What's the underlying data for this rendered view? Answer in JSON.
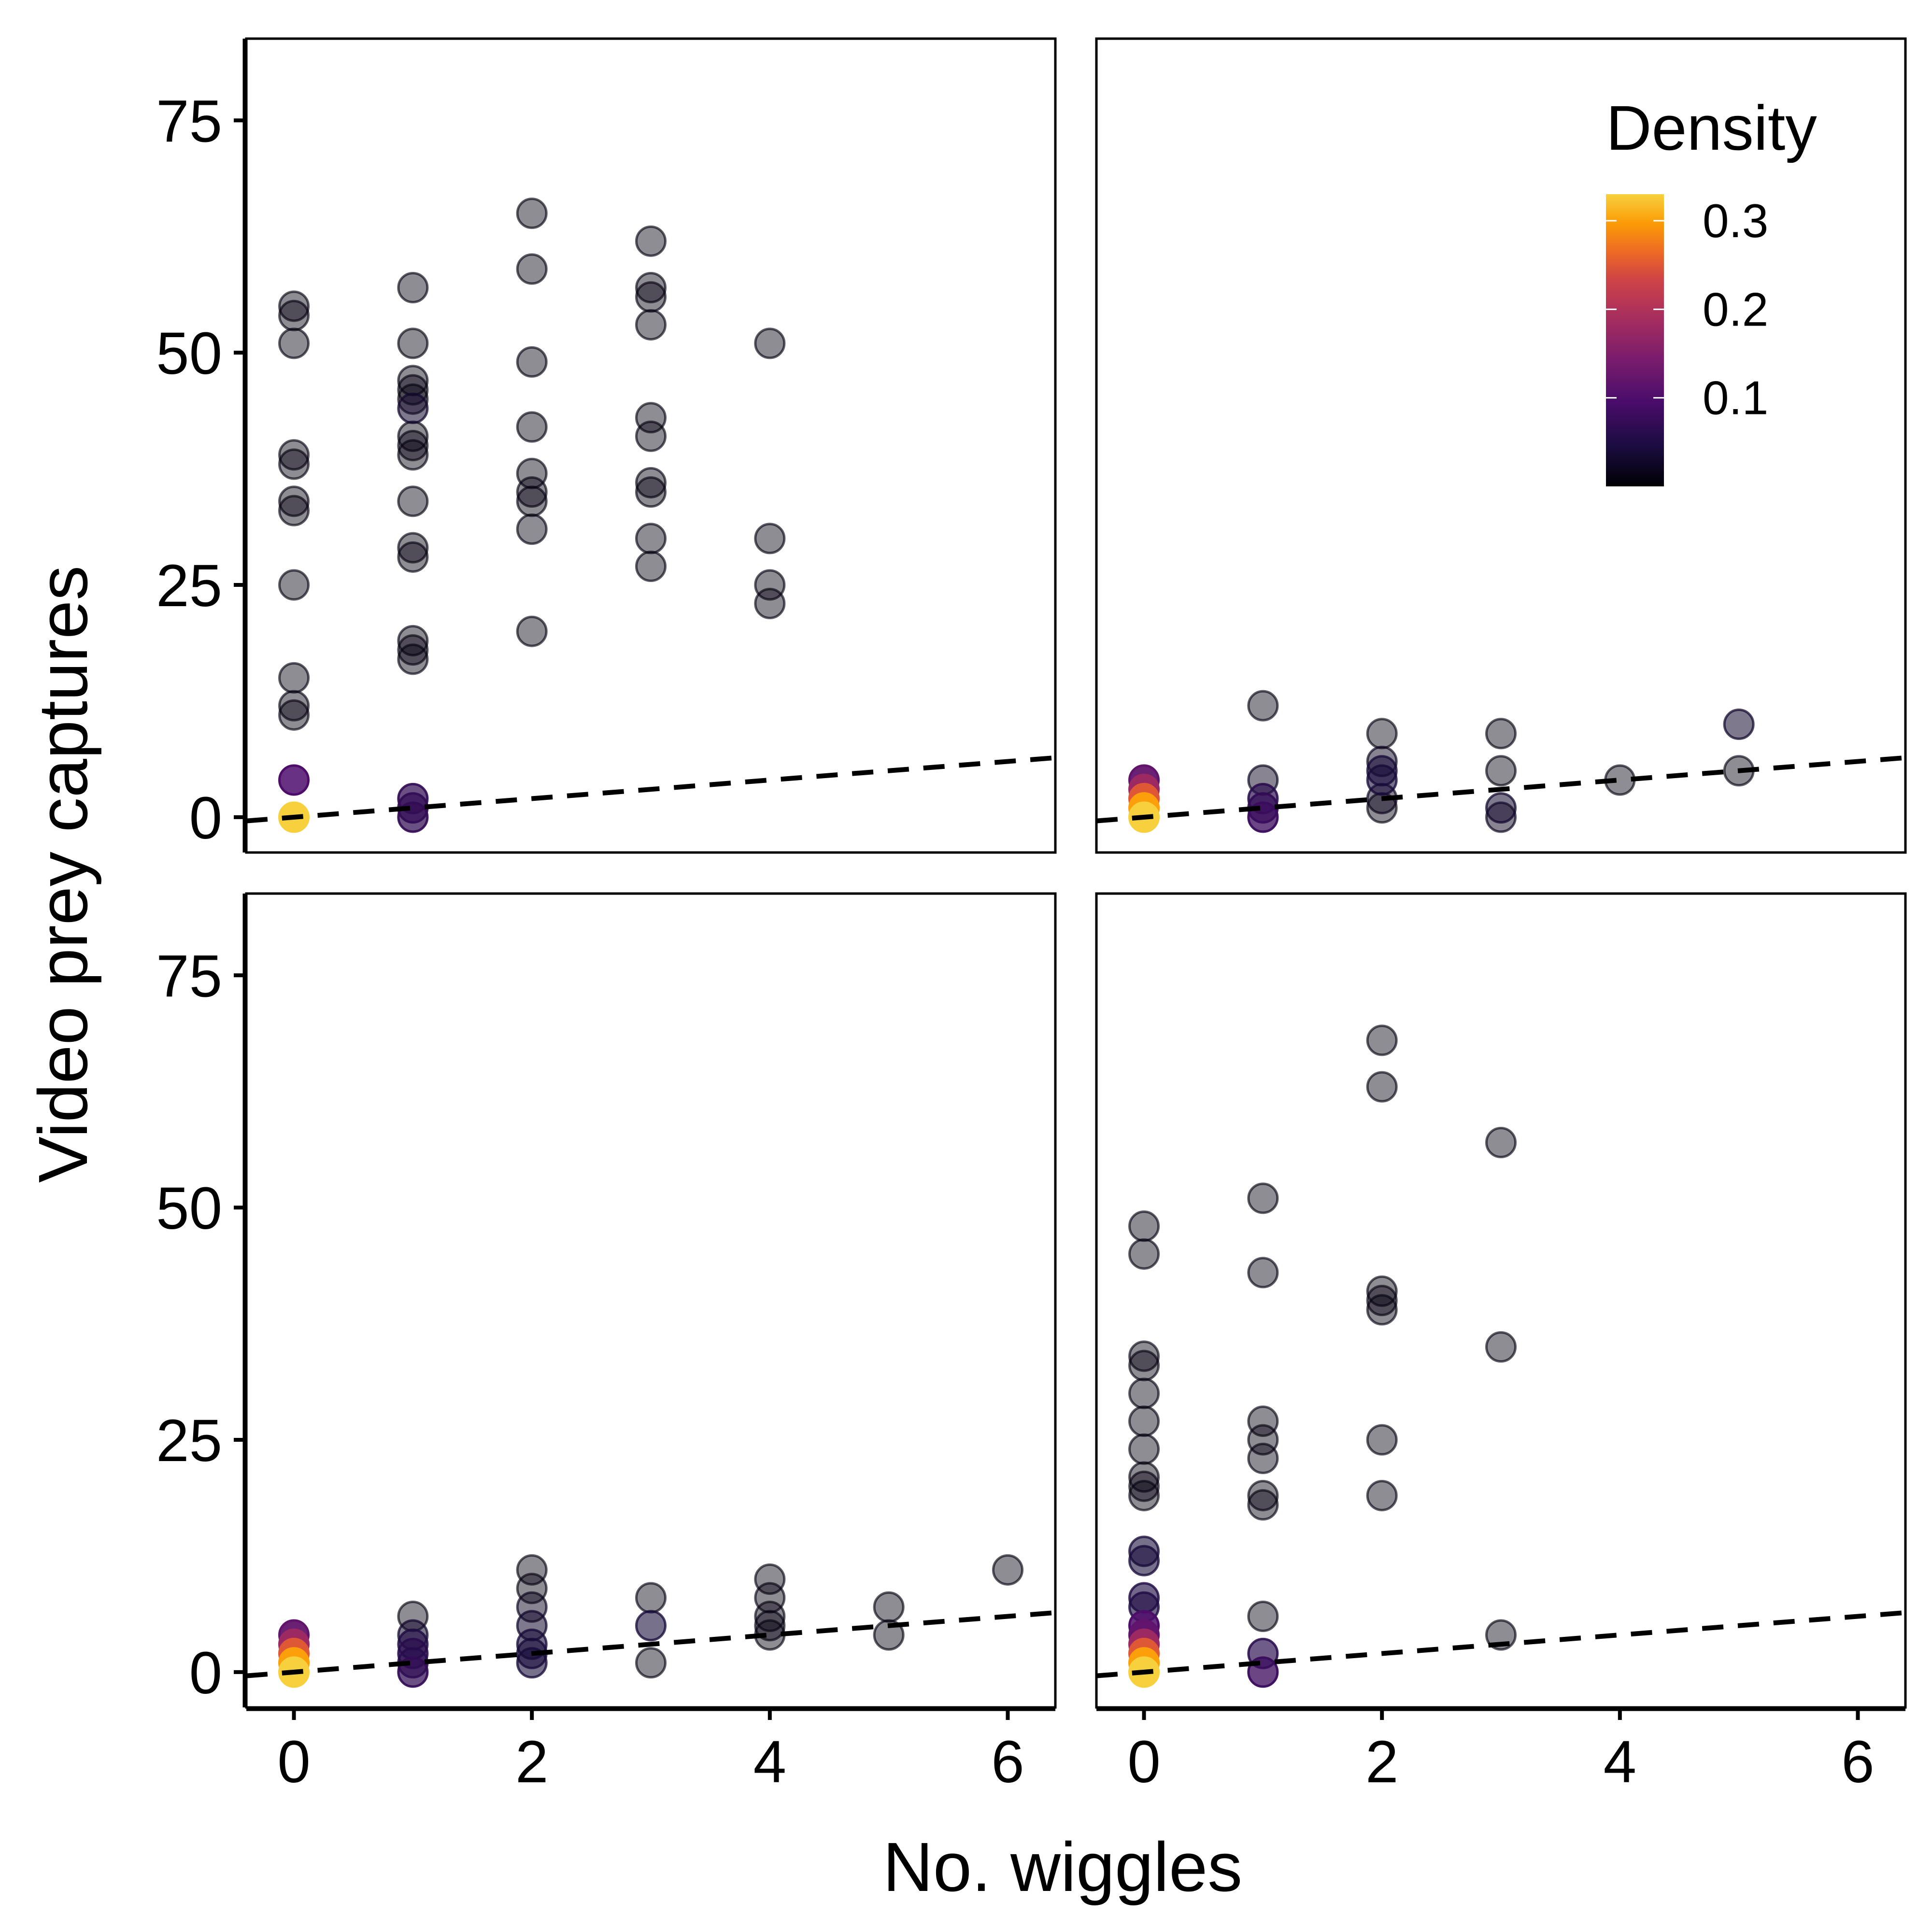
{
  "chart_data": {
    "type": "scatter",
    "xlabel": "No. wiggles",
    "ylabel": "Video prey captures",
    "xlim": [
      -0.4,
      6.4
    ],
    "ylim": [
      -3.8,
      83.8
    ],
    "x_ticks": [
      0,
      2,
      4,
      6
    ],
    "y_ticks": [
      0,
      25,
      50,
      75
    ],
    "grid": false,
    "reference_line": {
      "style": "dashed",
      "color": "#000000",
      "slope": 1,
      "intercept": 0
    },
    "legend": {
      "title": "Density",
      "placement": "top-right",
      "scale": "inferno",
      "ticks": [
        0.1,
        0.2,
        0.3
      ],
      "range": [
        0.0,
        0.33
      ]
    },
    "panels": [
      {
        "position": "top-left",
        "points": [
          [
            0,
            55,
            0.01
          ],
          [
            0,
            54,
            0.01
          ],
          [
            0,
            51,
            0.01
          ],
          [
            0,
            39,
            0.01
          ],
          [
            0,
            38,
            0.01
          ],
          [
            0,
            34,
            0.01
          ],
          [
            0,
            33,
            0.01
          ],
          [
            0,
            25,
            0.01
          ],
          [
            0,
            15,
            0.01
          ],
          [
            0,
            12,
            0.01
          ],
          [
            0,
            11,
            0.01
          ],
          [
            0,
            4,
            0.1
          ],
          [
            0,
            0,
            0.33
          ],
          [
            1,
            57,
            0.01
          ],
          [
            1,
            51,
            0.01
          ],
          [
            1,
            47,
            0.01
          ],
          [
            1,
            46,
            0.01
          ],
          [
            1,
            45,
            0.01
          ],
          [
            1,
            44,
            0.03
          ],
          [
            1,
            41,
            0.01
          ],
          [
            1,
            40,
            0.01
          ],
          [
            1,
            39,
            0.01
          ],
          [
            1,
            34,
            0.01
          ],
          [
            1,
            29,
            0.01
          ],
          [
            1,
            28,
            0.01
          ],
          [
            1,
            19,
            0.01
          ],
          [
            1,
            18,
            0.01
          ],
          [
            1,
            17,
            0.01
          ],
          [
            1,
            2,
            0.07
          ],
          [
            1,
            1,
            0.07
          ],
          [
            1,
            0,
            0.07
          ],
          [
            2,
            65,
            0.01
          ],
          [
            2,
            59,
            0.01
          ],
          [
            2,
            49,
            0.01
          ],
          [
            2,
            42,
            0.01
          ],
          [
            2,
            37,
            0.01
          ],
          [
            2,
            35,
            0.01
          ],
          [
            2,
            34,
            0.01
          ],
          [
            2,
            31,
            0.01
          ],
          [
            2,
            20,
            0.01
          ],
          [
            3,
            62,
            0.01
          ],
          [
            3,
            57,
            0.01
          ],
          [
            3,
            56,
            0.01
          ],
          [
            3,
            53,
            0.01
          ],
          [
            3,
            43,
            0.01
          ],
          [
            3,
            41,
            0.01
          ],
          [
            3,
            36,
            0.01
          ],
          [
            3,
            35,
            0.01
          ],
          [
            3,
            30,
            0.01
          ],
          [
            3,
            27,
            0.01
          ],
          [
            4,
            51,
            0.01
          ],
          [
            4,
            30,
            0.01
          ],
          [
            4,
            25,
            0.01
          ],
          [
            4,
            23,
            0.01
          ]
        ]
      },
      {
        "position": "top-right",
        "points": [
          [
            0,
            4,
            0.12
          ],
          [
            0,
            3,
            0.18
          ],
          [
            0,
            2,
            0.25
          ],
          [
            0,
            1,
            0.3
          ],
          [
            0,
            0,
            0.33
          ],
          [
            1,
            12,
            0.01
          ],
          [
            1,
            4,
            0.02
          ],
          [
            1,
            2,
            0.06
          ],
          [
            1,
            1,
            0.07
          ],
          [
            1,
            0,
            0.08
          ],
          [
            2,
            9,
            0.01
          ],
          [
            2,
            6,
            0.02
          ],
          [
            2,
            5,
            0.04
          ],
          [
            2,
            4,
            0.04
          ],
          [
            2,
            2,
            0.02
          ],
          [
            2,
            1,
            0.01
          ],
          [
            3,
            9,
            0.01
          ],
          [
            3,
            5,
            0.01
          ],
          [
            3,
            1,
            0.03
          ],
          [
            3,
            0,
            0.02
          ],
          [
            4,
            4,
            0.01
          ],
          [
            5,
            10,
            0.03
          ],
          [
            5,
            5,
            0.01
          ]
        ]
      },
      {
        "position": "bottom-left",
        "points": [
          [
            0,
            4,
            0.12
          ],
          [
            0,
            3,
            0.18
          ],
          [
            0,
            2,
            0.25
          ],
          [
            0,
            1,
            0.3
          ],
          [
            0,
            0,
            0.33
          ],
          [
            1,
            6,
            0.01
          ],
          [
            1,
            4,
            0.03
          ],
          [
            1,
            3,
            0.05
          ],
          [
            1,
            2,
            0.06
          ],
          [
            1,
            1,
            0.06
          ],
          [
            1,
            0,
            0.07
          ],
          [
            2,
            11,
            0.01
          ],
          [
            2,
            9,
            0.01
          ],
          [
            2,
            7,
            0.02
          ],
          [
            2,
            5,
            0.03
          ],
          [
            2,
            3,
            0.04
          ],
          [
            2,
            2,
            0.04
          ],
          [
            2,
            1,
            0.04
          ],
          [
            3,
            8,
            0.01
          ],
          [
            3,
            5,
            0.04
          ],
          [
            3,
            1,
            0.01
          ],
          [
            4,
            10,
            0.01
          ],
          [
            4,
            8,
            0.01
          ],
          [
            4,
            6,
            0.01
          ],
          [
            4,
            5,
            0.01
          ],
          [
            4,
            4,
            0.01
          ],
          [
            5,
            7,
            0.01
          ],
          [
            5,
            4,
            0.01
          ],
          [
            6,
            11,
            0.01
          ]
        ]
      },
      {
        "position": "bottom-right",
        "points": [
          [
            0,
            48,
            0.01
          ],
          [
            0,
            45,
            0.01
          ],
          [
            0,
            34,
            0.01
          ],
          [
            0,
            33,
            0.01
          ],
          [
            0,
            30,
            0.01
          ],
          [
            0,
            27,
            0.01
          ],
          [
            0,
            24,
            0.01
          ],
          [
            0,
            21,
            0.01
          ],
          [
            0,
            20,
            0.01
          ],
          [
            0,
            19,
            0.01
          ],
          [
            0,
            13,
            0.04
          ],
          [
            0,
            12,
            0.04
          ],
          [
            0,
            8,
            0.05
          ],
          [
            0,
            7,
            0.05
          ],
          [
            0,
            5,
            0.1
          ],
          [
            0,
            4,
            0.12
          ],
          [
            0,
            3,
            0.18
          ],
          [
            0,
            2,
            0.25
          ],
          [
            0,
            1,
            0.3
          ],
          [
            0,
            0,
            0.33
          ],
          [
            1,
            51,
            0.01
          ],
          [
            1,
            43,
            0.01
          ],
          [
            1,
            27,
            0.01
          ],
          [
            1,
            25,
            0.01
          ],
          [
            1,
            23,
            0.01
          ],
          [
            1,
            19,
            0.01
          ],
          [
            1,
            18,
            0.01
          ],
          [
            1,
            6,
            0.01
          ],
          [
            1,
            2,
            0.06
          ],
          [
            1,
            0,
            0.08
          ],
          [
            2,
            68,
            0.01
          ],
          [
            2,
            63,
            0.01
          ],
          [
            2,
            41,
            0.01
          ],
          [
            2,
            40,
            0.01
          ],
          [
            2,
            39,
            0.01
          ],
          [
            2,
            25,
            0.01
          ],
          [
            2,
            19,
            0.01
          ],
          [
            3,
            57,
            0.01
          ],
          [
            3,
            35,
            0.01
          ],
          [
            3,
            4,
            0.01
          ]
        ]
      }
    ]
  }
}
